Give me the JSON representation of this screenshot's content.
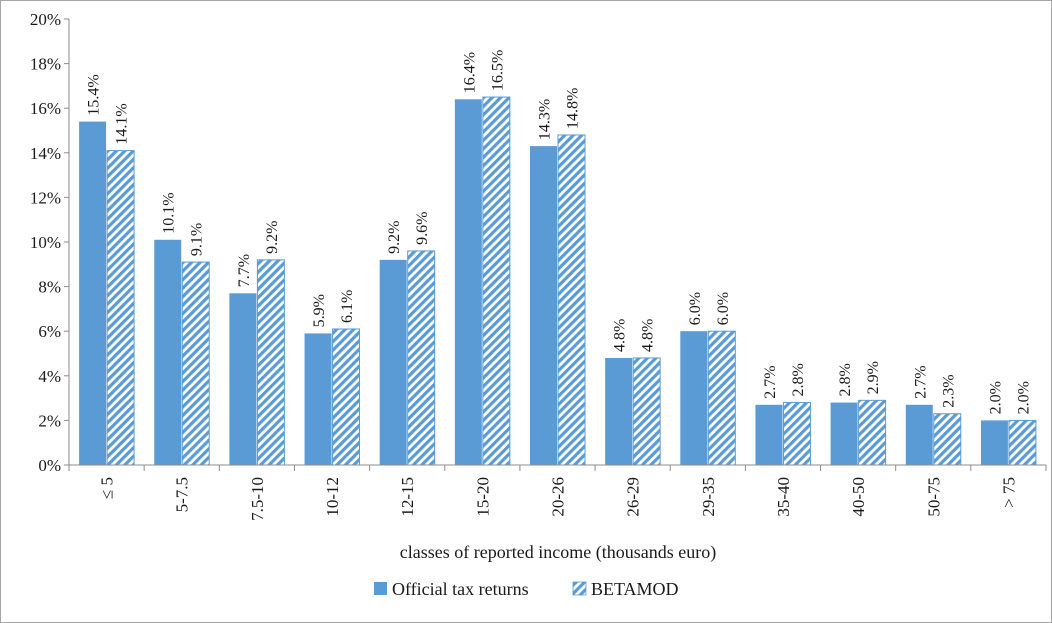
{
  "chart_data": {
    "type": "bar",
    "xlabel": "classes of reported income (thousands euro)",
    "ylabel": "",
    "ylim": [
      0,
      20
    ],
    "y_ticks": [
      "0%",
      "2%",
      "4%",
      "6%",
      "8%",
      "10%",
      "12%",
      "14%",
      "16%",
      "18%",
      "20%"
    ],
    "categories": [
      "≤ 5",
      "5-7.5",
      "7.5-10",
      "10-12",
      "12-15",
      "15-20",
      "20-26",
      "26-29",
      "29-35",
      "35-40",
      "40-50",
      "50-75",
      "> 75"
    ],
    "series": [
      {
        "name": "Official tax returns",
        "values": [
          15.4,
          10.1,
          7.7,
          5.9,
          9.2,
          16.4,
          14.3,
          4.8,
          6.0,
          2.7,
          2.8,
          2.7,
          2.0
        ],
        "labels": [
          "15.4%",
          "10.1%",
          "7.7%",
          "5.9%",
          "9.2%",
          "16.4%",
          "14.3%",
          "4.8%",
          "6.0%",
          "2.7%",
          "2.8%",
          "2.7%",
          "2.0%"
        ],
        "color": "#5b9bd5",
        "pattern": "solid"
      },
      {
        "name": "BETAMOD",
        "values": [
          14.1,
          9.1,
          9.2,
          6.1,
          9.6,
          16.5,
          14.8,
          4.8,
          6.0,
          2.8,
          2.9,
          2.3,
          2.0
        ],
        "labels": [
          "14.1%",
          "9.1%",
          "9.2%",
          "6.1%",
          "9.6%",
          "16.5%",
          "14.8%",
          "4.8%",
          "6.0%",
          "2.8%",
          "2.9%",
          "2.3%",
          "2.0%"
        ],
        "color": "#5b9bd5",
        "pattern": "diagonal-hatch"
      }
    ],
    "grid": false,
    "legend": "bottom"
  }
}
